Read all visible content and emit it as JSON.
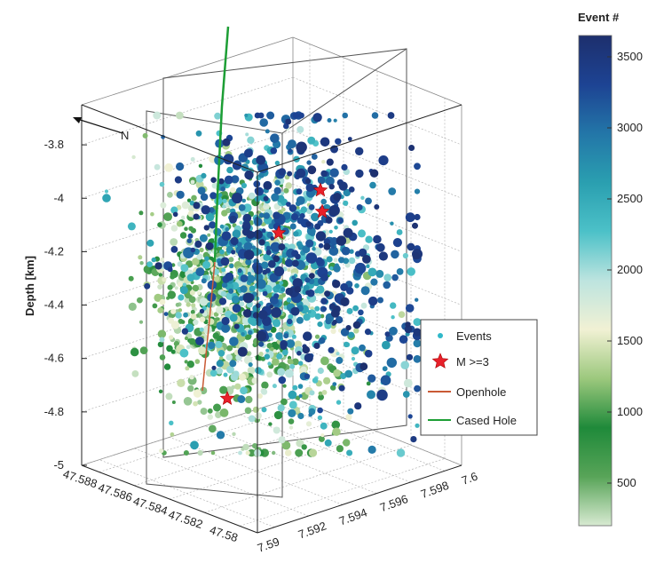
{
  "chart_data": {
    "type": "scatter",
    "title": "",
    "zlabel": "Depth [km]",
    "z_ticks": [
      "-3.8",
      "-4",
      "-4.2",
      "-4.4",
      "-4.6",
      "-4.8",
      "-5"
    ],
    "lat_ticks": [
      "47.588",
      "47.586",
      "47.584",
      "47.582",
      "47.58"
    ],
    "lon_ticks": [
      "7.59",
      "7.592",
      "7.594",
      "7.596",
      "7.598",
      "7.6"
    ],
    "north_label": "N",
    "zlim": [
      -5.0,
      -3.65
    ],
    "colorbar": {
      "title": "Event #",
      "ticks": [
        "500",
        "1000",
        "1500",
        "2000",
        "2500",
        "3000",
        "3500"
      ],
      "tick_values": [
        500,
        1000,
        1500,
        2000,
        2500,
        3000,
        3500
      ],
      "range": [
        200,
        3650
      ],
      "colormap": [
        "#d8ead2",
        "#58a458",
        "#1f8a3a",
        "#9cc87d",
        "#f1f1d4",
        "#bde4df",
        "#4cc1c8",
        "#2a9fb0",
        "#2376a8",
        "#1d4393",
        "#1d2f6d"
      ]
    },
    "legend": {
      "placement": "lower-right",
      "items": [
        {
          "label": "Events",
          "marker": "dot",
          "color": "#2fb8c9"
        },
        {
          "label": "M >=3",
          "marker": "star",
          "color": "#e8202a"
        },
        {
          "label": "Openhole",
          "marker": "line",
          "color": "#c95a35"
        },
        {
          "label": "Cased Hole",
          "marker": "line",
          "color": "#1d9e35"
        }
      ]
    },
    "event_cloud_summary": {
      "count_approx": 3600,
      "depth_range_km": [
        -4.95,
        -3.75
      ],
      "early_events_color": "light green / cream near well bottom",
      "late_events_color": "dark blue at upper NE part"
    },
    "large_events_depth_km": [
      -3.97,
      -4.05,
      -4.13,
      -4.75
    ]
  }
}
